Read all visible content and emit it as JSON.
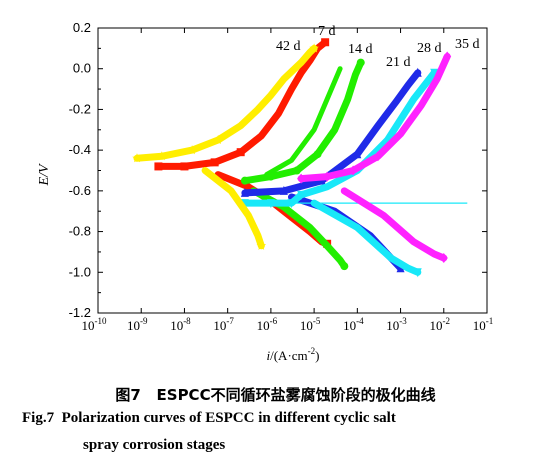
{
  "chart_data": {
    "type": "line",
    "xscale": "log",
    "xlabel_var": "i",
    "xlabel_unit": "/(A·cm",
    "xlabel_exp": "-2",
    "xlabel_close": ")",
    "ylabel": "E/V",
    "xlim": [
      1e-10,
      0.1
    ],
    "ylim": [
      -1.2,
      0.2
    ],
    "x_ticks": [
      {
        "base": "10",
        "exp": "-10"
      },
      {
        "base": "10",
        "exp": "-9"
      },
      {
        "base": "10",
        "exp": "-8"
      },
      {
        "base": "10",
        "exp": "-7"
      },
      {
        "base": "10",
        "exp": "-6"
      },
      {
        "base": "10",
        "exp": "-5"
      },
      {
        "base": "10",
        "exp": "-4"
      },
      {
        "base": "10",
        "exp": "-3"
      },
      {
        "base": "10",
        "exp": "-2"
      },
      {
        "base": "10",
        "exp": "-1"
      }
    ],
    "y_ticks": [
      "0.2",
      "0.0",
      "-0.2",
      "-0.4",
      "-0.6",
      "-0.8",
      "-1.0",
      "-1.2"
    ],
    "series": [
      {
        "name": "7 d",
        "color": "#ff1a00",
        "marker": "square",
        "x": [
          2.5e-09,
          1e-08,
          5e-08,
          2e-07,
          6e-07,
          1.5e-06,
          3e-06,
          5e-06,
          8e-06,
          1.2e-05,
          1.8e-05
        ],
        "y": [
          -0.48,
          -0.48,
          -0.46,
          -0.41,
          -0.33,
          -0.22,
          -0.1,
          -0.02,
          0.04,
          0.1,
          0.13
        ],
        "cathodic_x": [
          6e-08,
          3e-07,
          1e-06,
          3e-06,
          8e-06,
          1.5e-05,
          2e-05
        ],
        "cathodic_y": [
          -0.52,
          -0.58,
          -0.65,
          -0.73,
          -0.8,
          -0.85,
          -0.86
        ]
      },
      {
        "name": "14 d",
        "color": "#22ee00",
        "marker": "circle",
        "x": [
          2.5e-07,
          1e-06,
          4e-06,
          1.2e-05,
          3e-05,
          6e-05,
          9e-05,
          0.00012
        ],
        "y": [
          -0.55,
          -0.53,
          -0.5,
          -0.42,
          -0.3,
          -0.15,
          -0.03,
          0.03
        ],
        "cathodic_x": [
          4e-07,
          2e-06,
          8e-06,
          2e-05,
          4e-05,
          5e-05
        ],
        "cathodic_y": [
          -0.6,
          -0.68,
          -0.78,
          -0.87,
          -0.94,
          -0.97
        ],
        "hysteresis_x": [
          4e-05,
          1e-05,
          3e-06,
          8e-07
        ],
        "hysteresis_y": [
          0.0,
          -0.3,
          -0.45,
          -0.52
        ]
      },
      {
        "name": "21 d",
        "color": "#1f2ae8",
        "marker": "triangle-up",
        "x": [
          2.5e-07,
          2e-06,
          1.5e-05,
          0.0001,
          0.0003,
          0.0008,
          0.0015,
          0.0025
        ],
        "y": [
          -0.61,
          -0.6,
          -0.55,
          -0.42,
          -0.28,
          -0.16,
          -0.08,
          -0.02
        ],
        "cathodic_x": [
          3e-06,
          3e-05,
          0.0002,
          0.0006,
          0.001
        ],
        "cathodic_y": [
          -0.63,
          -0.7,
          -0.82,
          -0.93,
          -0.98
        ]
      },
      {
        "name": "28 d",
        "color": "#18e8f8",
        "marker": "triangle-down",
        "x": [
          2.5e-07,
          1e-06,
          3e-06,
          5e-06,
          2e-05,
          0.0001,
          0.0005,
          0.002,
          0.006
        ],
        "y": [
          -0.66,
          -0.66,
          -0.66,
          -0.62,
          -0.58,
          -0.5,
          -0.35,
          -0.15,
          -0.02
        ],
        "cathodic_x": [
          1e-05,
          0.0001,
          0.0006,
          0.0015,
          0.0025
        ],
        "cathodic_y": [
          -0.66,
          -0.78,
          -0.93,
          -0.98,
          -1.0
        ],
        "reference_line": {
          "x": [
            2.5e-07,
            0.035
          ],
          "y": [
            -0.66,
            -0.66
          ]
        }
      },
      {
        "name": "35 d",
        "color": "#ff22ff",
        "marker": "diamond",
        "x": [
          5e-06,
          2e-05,
          8e-05,
          0.0003,
          0.001,
          0.003,
          0.007,
          0.012
        ],
        "y": [
          -0.54,
          -0.53,
          -0.5,
          -0.43,
          -0.32,
          -0.18,
          -0.05,
          0.06
        ],
        "cathodic_x": [
          5e-05,
          0.0004,
          0.002,
          0.006,
          0.01
        ],
        "cathodic_y": [
          -0.6,
          -0.72,
          -0.85,
          -0.91,
          -0.93
        ]
      },
      {
        "name": "42 d",
        "color": "#ffee00",
        "marker": "star",
        "x": [
          8e-10,
          3e-09,
          1.5e-08,
          6e-08,
          2e-07,
          5e-07,
          1e-06,
          2e-06,
          5e-06,
          8e-06,
          1e-05
        ],
        "y": [
          -0.44,
          -0.43,
          -0.4,
          -0.35,
          -0.28,
          -0.2,
          -0.13,
          -0.05,
          0.03,
          0.08,
          0.1
        ],
        "cathodic_x": [
          3e-08,
          1.2e-07,
          3e-07,
          5e-07,
          6e-07
        ],
        "cathodic_y": [
          -0.5,
          -0.6,
          -0.72,
          -0.82,
          -0.87
        ]
      }
    ]
  },
  "caption": {
    "cn_fig_no": "图7",
    "cn_text": "ESPCC不同循环盐雾腐蚀阶段的极化曲线",
    "en_line1": "Fig.7  Polarization curves of ESPCC in different cyclic salt",
    "en_line2": "spray corrosion stages"
  }
}
